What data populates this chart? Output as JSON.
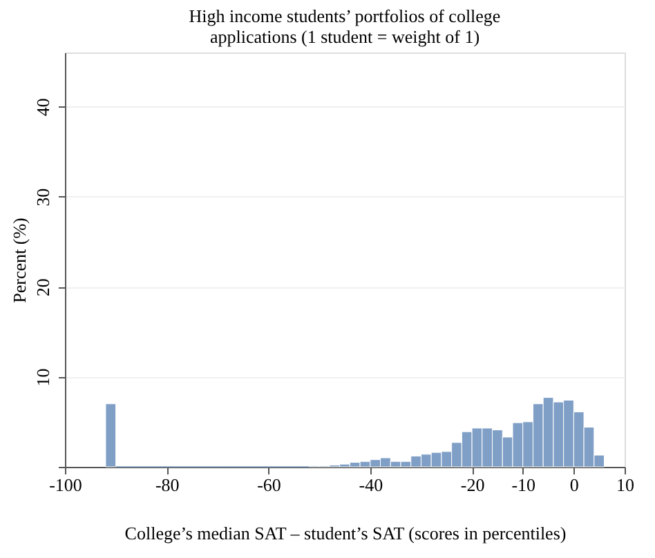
{
  "chart_data": {
    "type": "histogram",
    "title": "High income students’ portfolios  of  college  applications (1 student = weight of 1)",
    "xlabel": "College’s median SAT – student’s SAT (scores in percentiles)",
    "ylabel": "Percent (%)",
    "bins": [
      -92,
      -90,
      -88,
      -86,
      -84,
      -82,
      -80,
      -78,
      -76,
      -74,
      -72,
      -70,
      -68,
      -66,
      -64,
      -62,
      -60,
      -58,
      -56,
      -54,
      -52,
      -50,
      -48,
      -46,
      -44,
      -42,
      -40,
      -38,
      -36,
      -34,
      -32,
      -30,
      -28,
      -26,
      -24,
      -22,
      -20,
      -18,
      -16,
      -14,
      -12,
      -10,
      -8,
      -6,
      -4,
      -2,
      0,
      2,
      4,
      6
    ],
    "values": [
      7.0,
      0,
      0,
      0,
      0,
      0,
      0,
      0,
      0,
      0,
      0,
      0,
      0,
      0,
      0,
      0,
      0,
      0,
      0,
      0,
      0.1,
      0.1,
      0.2,
      0.3,
      0.5,
      0.6,
      0.8,
      1.0,
      0.6,
      0.6,
      1.2,
      1.4,
      1.6,
      1.7,
      2.7,
      3.9,
      4.3,
      4.3,
      4.1,
      3.3,
      4.9,
      5.0,
      7.0,
      7.7,
      7.2,
      7.4,
      6.1,
      4.4,
      1.3
    ],
    "color": "#7f9fc6",
    "xlim": [
      -100,
      10
    ],
    "xticks": [
      -100,
      -80,
      -60,
      -40,
      -20,
      -10,
      0,
      10
    ],
    "ylim": [
      0,
      46
    ],
    "yticks": [
      {
        "value": 0,
        "label": null
      },
      10,
      20,
      30,
      40
    ],
    "grid": "y"
  }
}
